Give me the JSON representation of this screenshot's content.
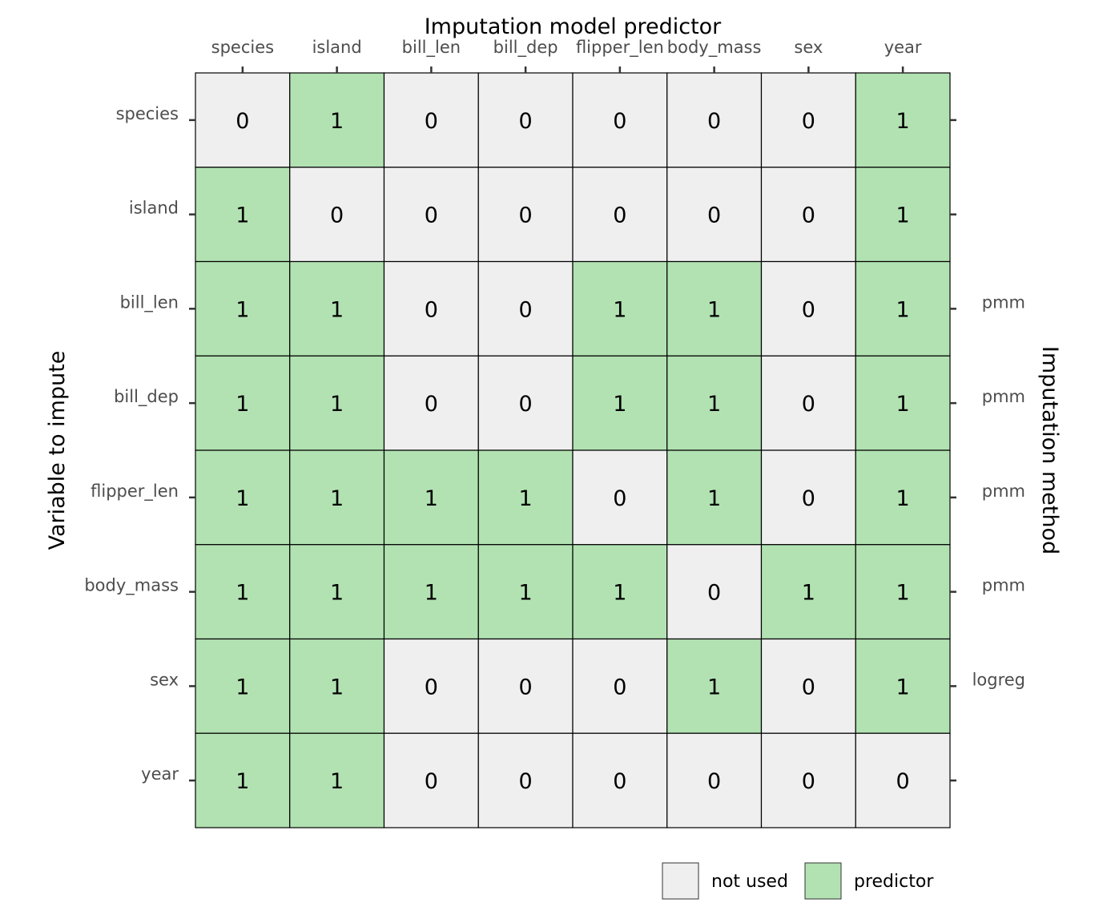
{
  "chart_data": {
    "type": "heatmap",
    "title": "",
    "xlabel": "Imputation model predictor",
    "ylabel": "Variable to impute",
    "y2label": "Imputation method",
    "x_categories": [
      "species",
      "island",
      "bill_len",
      "bill_dep",
      "flipper_len",
      "body_mass",
      "sex",
      "year"
    ],
    "y_categories": [
      "species",
      "island",
      "bill_len",
      "bill_dep",
      "flipper_len",
      "body_mass",
      "sex",
      "year"
    ],
    "methods": [
      "",
      "",
      "pmm",
      "pmm",
      "pmm",
      "pmm",
      "logreg",
      ""
    ],
    "matrix": [
      [
        0,
        1,
        0,
        0,
        0,
        0,
        0,
        1
      ],
      [
        1,
        0,
        0,
        0,
        0,
        0,
        0,
        1
      ],
      [
        1,
        1,
        0,
        0,
        1,
        1,
        0,
        1
      ],
      [
        1,
        1,
        0,
        0,
        1,
        1,
        0,
        1
      ],
      [
        1,
        1,
        1,
        1,
        0,
        1,
        0,
        1
      ],
      [
        1,
        1,
        1,
        1,
        1,
        0,
        1,
        1
      ],
      [
        1,
        1,
        0,
        0,
        0,
        1,
        0,
        1
      ],
      [
        1,
        1,
        0,
        0,
        0,
        0,
        0,
        0
      ]
    ],
    "legend": [
      {
        "value": 0,
        "label": "not used",
        "color": "#efefef"
      },
      {
        "value": 1,
        "label": "predictor",
        "color": "#b2e2b2"
      }
    ],
    "legend_position": "bottom-right",
    "grid": false
  }
}
